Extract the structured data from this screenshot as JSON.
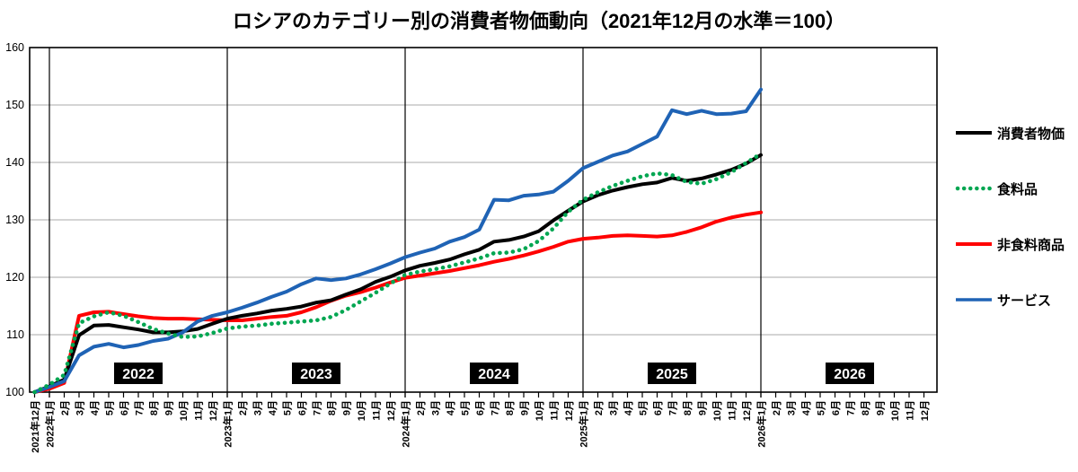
{
  "page": {
    "title": "ロシアのカテゴリー別の消費者物価動向（2021年12月の水準＝100）"
  },
  "chart_data": {
    "type": "line",
    "title": "ロシアのカテゴリー別の消費者物価動向（2021年12月の水準＝100）",
    "xlabel": "",
    "ylabel": "",
    "ylim": [
      100,
      160
    ],
    "y_ticks": [
      100,
      110,
      120,
      130,
      140,
      150,
      160
    ],
    "grid": true,
    "legend_position": "right",
    "year_labels": [
      "2022",
      "2023",
      "2024",
      "2025",
      "2026"
    ],
    "x_labels": [
      "2021年12月",
      "2022年1月",
      "2月",
      "3月",
      "4月",
      "5月",
      "6月",
      "7月",
      "8月",
      "9月",
      "10月",
      "11月",
      "12月",
      "2023年1月",
      "2月",
      "3月",
      "4月",
      "5月",
      "6月",
      "7月",
      "8月",
      "9月",
      "10月",
      "11月",
      "12月",
      "2024年1月",
      "2月",
      "3月",
      "4月",
      "5月",
      "6月",
      "7月",
      "8月",
      "9月",
      "10月",
      "11月",
      "12月",
      "2025年1月",
      "2月",
      "3月",
      "4月",
      "5月",
      "6月",
      "7月",
      "8月",
      "9月",
      "10月",
      "11月",
      "12月",
      "2026年1月",
      "2月",
      "3月",
      "4月",
      "5月",
      "6月",
      "7月",
      "8月",
      "9月",
      "10月",
      "11月",
      "12月"
    ],
    "series": [
      {
        "id": "cpi",
        "name": "消費者物価",
        "color": "#000000",
        "style": "solid",
        "values": [
          100,
          101.0,
          102.2,
          109.9,
          111.6,
          111.7,
          111.3,
          110.9,
          110.4,
          110.4,
          110.6,
          111.0,
          111.9,
          112.8,
          113.3,
          113.7,
          114.2,
          114.5,
          114.9,
          115.6,
          116.0,
          117.0,
          117.9,
          119.2,
          120.1,
          121.2,
          122.0,
          122.5,
          123.1,
          124.0,
          124.8,
          126.2,
          126.5,
          127.1,
          128.0,
          129.9,
          131.6,
          133.2,
          134.3,
          135.1,
          135.7,
          136.2,
          136.5,
          137.3,
          136.8,
          137.2,
          137.9,
          138.7,
          139.8,
          141.3
        ]
      },
      {
        "id": "food",
        "name": "食料品",
        "color": "#00a651",
        "style": "dotted",
        "values": [
          100,
          101.3,
          103.0,
          112.0,
          113.2,
          113.9,
          113.3,
          112.2,
          111.0,
          110.2,
          109.6,
          109.7,
          110.3,
          111.1,
          111.4,
          111.6,
          111.9,
          112.1,
          112.3,
          112.5,
          113.1,
          114.3,
          115.8,
          117.3,
          118.9,
          120.4,
          121.0,
          121.4,
          121.9,
          122.6,
          123.3,
          124.2,
          124.3,
          124.9,
          126.3,
          128.5,
          131.4,
          133.5,
          134.8,
          135.9,
          136.8,
          137.6,
          138.1,
          137.8,
          136.6,
          136.3,
          137.1,
          138.3,
          139.9,
          141.5
        ]
      },
      {
        "id": "nonfood",
        "name": "非食料商品",
        "color": "#ff0000",
        "style": "solid",
        "values": [
          100,
          100.6,
          101.6,
          113.3,
          113.9,
          114.0,
          113.6,
          113.2,
          112.9,
          112.8,
          112.8,
          112.7,
          112.6,
          112.5,
          112.5,
          112.8,
          113.1,
          113.3,
          113.9,
          114.8,
          115.9,
          116.8,
          117.4,
          118.2,
          119.1,
          119.9,
          120.3,
          120.7,
          121.1,
          121.6,
          122.1,
          122.7,
          123.2,
          123.8,
          124.5,
          125.3,
          126.2,
          126.7,
          126.9,
          127.2,
          127.3,
          127.2,
          127.1,
          127.3,
          127.9,
          128.7,
          129.7,
          130.4,
          130.9,
          131.3
        ]
      },
      {
        "id": "services",
        "name": "サービス",
        "color": "#1f63b5",
        "style": "solid",
        "values": [
          100,
          100.9,
          101.9,
          106.4,
          107.9,
          108.4,
          107.8,
          108.2,
          108.9,
          109.3,
          110.4,
          112.3,
          113.3,
          113.9,
          114.7,
          115.6,
          116.6,
          117.5,
          118.8,
          119.8,
          119.5,
          119.8,
          120.5,
          121.4,
          122.4,
          123.5,
          124.3,
          125.0,
          126.2,
          127.0,
          128.3,
          133.5,
          133.4,
          134.2,
          134.4,
          134.9,
          136.8,
          139.0,
          140.1,
          141.2,
          141.9,
          143.2,
          144.5,
          149.1,
          148.4,
          149.0,
          148.4,
          148.5,
          148.9,
          152.7
        ]
      }
    ]
  }
}
